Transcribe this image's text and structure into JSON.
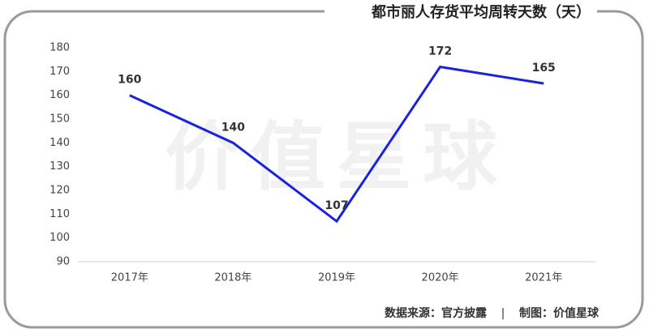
{
  "chart_data": {
    "type": "line",
    "title": "都市丽人存货平均周转天数（天）",
    "watermark": "价值星球",
    "categories": [
      "2017年",
      "2018年",
      "2019年",
      "2020年",
      "2021年"
    ],
    "values": [
      160,
      140,
      107,
      172,
      165
    ],
    "color": "#1a22e0",
    "ylim": [
      90,
      180
    ],
    "yticks": [
      90,
      100,
      110,
      120,
      130,
      140,
      150,
      160,
      170,
      180
    ],
    "grid": false,
    "source": "数据来源：官方披露",
    "separator": "|",
    "credit": "制图：价值星球"
  }
}
